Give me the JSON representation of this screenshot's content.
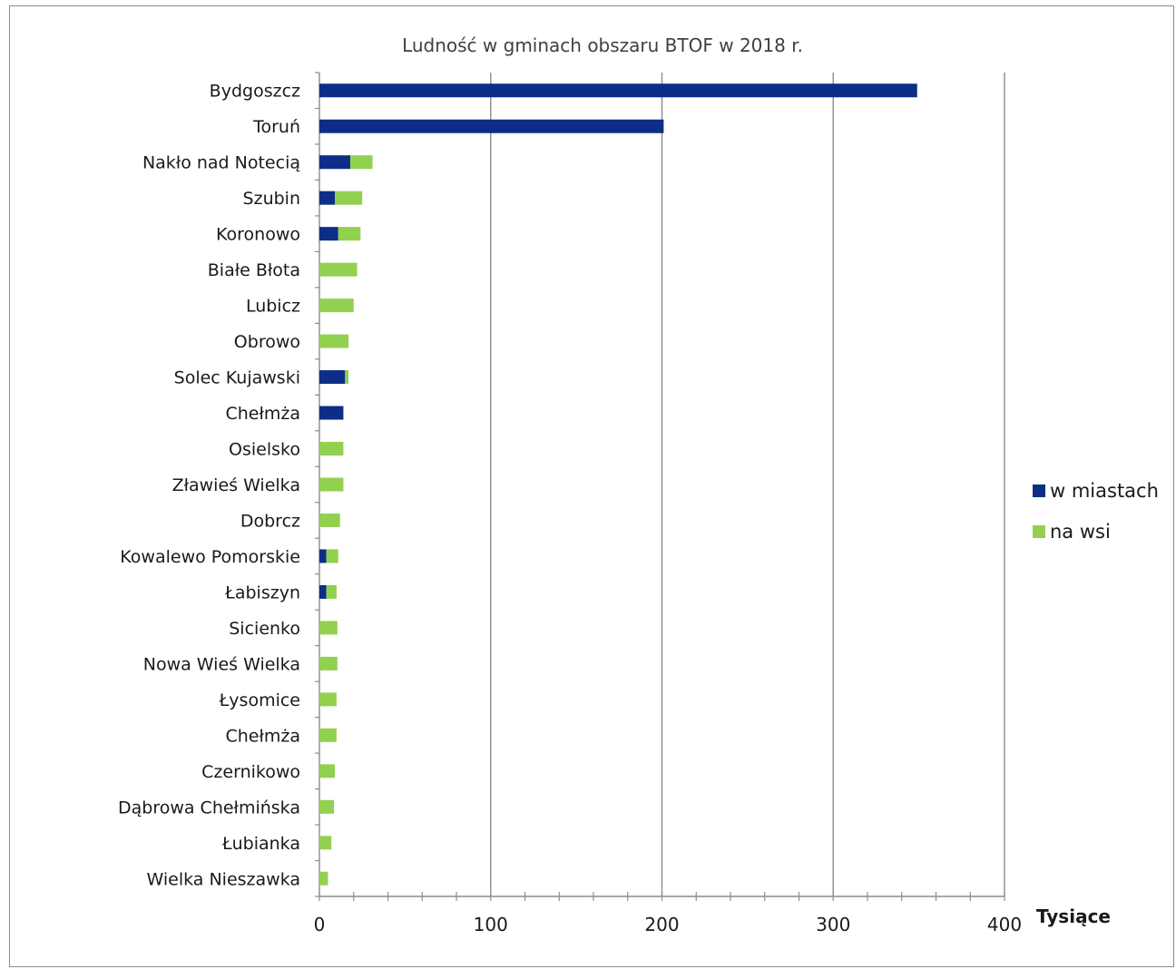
{
  "chart_data": {
    "type": "bar",
    "orientation": "horizontal",
    "stacked": true,
    "title": "Ludność w gminach obszaru BTOF w 2018 r.",
    "xlabel": "Tysiące",
    "ylabel": "",
    "xlim": [
      0,
      400
    ],
    "xticks": [
      0,
      100,
      200,
      300,
      400
    ],
    "grid": true,
    "legend_position": "right",
    "categories": [
      "Bydgoszcz",
      "Toruń",
      "Nakło nad Notecią",
      "Szubin",
      "Koronowo",
      "Białe Błota",
      "Lubicz",
      "Obrowo",
      "Solec Kujawski",
      "Chełmża",
      "Osielsko",
      "Zławieś Wielka",
      "Dobrcz",
      "Kowalewo Pomorskie",
      "Łabiszyn",
      "Sicienko",
      "Nowa Wieś Wielka",
      "Łysomice",
      "Chełmża",
      "Czernikowo",
      "Dąbrowa Chełmińska",
      "Łubianka",
      "Wielka Nieszawka"
    ],
    "series": [
      {
        "name": "w miastach",
        "color": "#0d2d87",
        "values": [
          349,
          201,
          18,
          9,
          11,
          0,
          0,
          0,
          15,
          14,
          0,
          0,
          0,
          4,
          4,
          0,
          0,
          0,
          0,
          0,
          0,
          0,
          0
        ]
      },
      {
        "name": "na wsi",
        "color": "#92d050",
        "values": [
          0,
          0,
          13,
          16,
          13,
          22,
          20,
          17,
          2,
          0,
          14,
          14,
          12,
          7,
          6,
          10.5,
          10.5,
          10,
          10,
          9,
          8.5,
          7,
          5
        ]
      }
    ]
  }
}
